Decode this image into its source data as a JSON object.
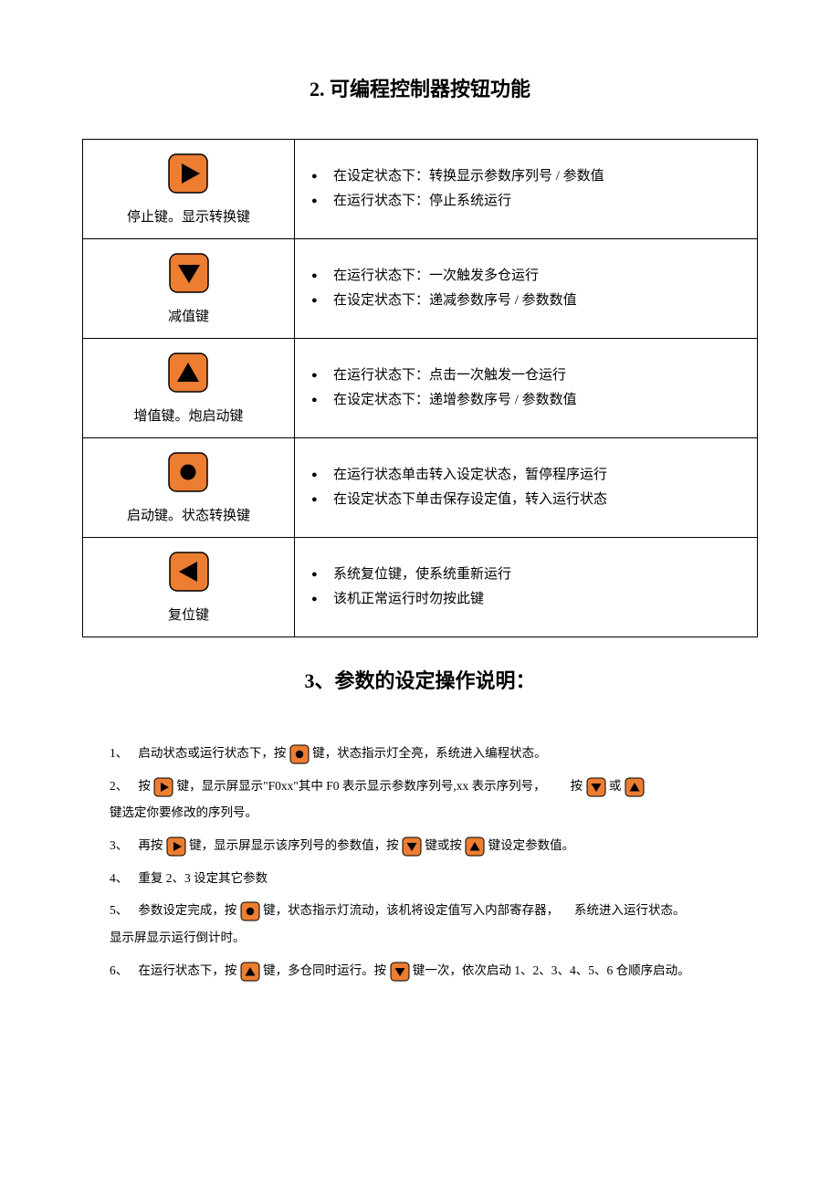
{
  "title1": "2. 可编程控制器按钮功能",
  "title2": "3、参数的设定操作说明：",
  "iconColors": {
    "fill": "#ed7d31",
    "stroke": "#000000",
    "shape": "#000000"
  },
  "buttons": [
    {
      "icon": "play",
      "label": "停止键。显示转换键",
      "points": [
        "在设定状态下：转换显示参数序列号 / 参数值",
        "在运行状态下：停止系统运行"
      ]
    },
    {
      "icon": "down",
      "label": "减值键",
      "points": [
        "在运行状态下：一次触发多仓运行",
        "在设定状态下：递减参数序号 / 参数数值"
      ]
    },
    {
      "icon": "up",
      "label": "增值键。炮启动键",
      "points": [
        "在运行状态下：点击一次触发一仓运行",
        "在设定状态下：递增参数序号 / 参数数值"
      ]
    },
    {
      "icon": "circle",
      "label": "启动键。状态转换键",
      "points": [
        "在运行状态单击转入设定状态，暂停程序运行",
        "在设定状态下单击保存设定值，转入运行状态"
      ]
    },
    {
      "icon": "left",
      "label": "复位键",
      "points": [
        "系统复位键，使系统重新运行",
        "该机正常运行时勿按此键"
      ]
    }
  ],
  "instr": {
    "n1": "1、",
    "t1a": "启动状态或运行状态下，按",
    "t1b": "键，状态指示灯全亮，系统进入编程状态。",
    "n2": "2、",
    "t2a": "按",
    "t2b": "键，显示屏显示\"F0xx\"其中 F0 表示显示参数序列号,xx 表示序列号，",
    "t2c": "按",
    "t2d": "或",
    "t2e": "键选定你要修改的序列号。",
    "n3": "3、",
    "t3a": "再按",
    "t3b": "键，显示屏显示该序列号的参数值，按",
    "t3c": "键或按",
    "t3d": "键设定参数值。",
    "n4": "4、",
    "t4": "重复 2、3 设定其它参数",
    "n5": "5、",
    "t5a": "参数设定完成，按",
    "t5b": "键，状态指示灯流动，该机将设定值写入内部寄存器，",
    "t5c": "系统进入运行状态。",
    "t5d": "显示屏显示运行倒计时。",
    "n6": "6、",
    "t6a": "在运行状态下，按",
    "t6b": " 键，多仓同时运行。按",
    "t6c": "键一次，依次启动 1、2、3、4、5、6 仓顺序启动。"
  }
}
